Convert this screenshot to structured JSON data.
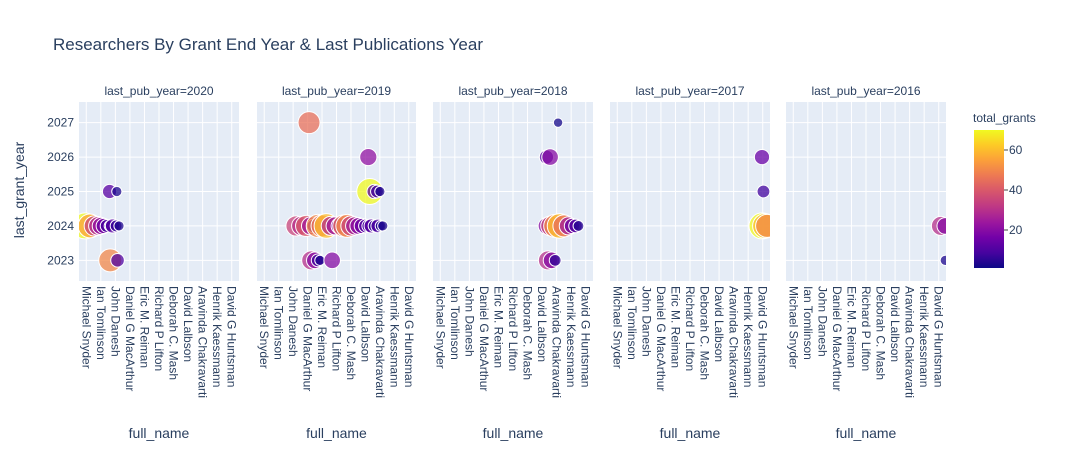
{
  "chart_data": {
    "type": "scatter",
    "title": "Researchers By Grant End Year & Last Publications Year",
    "xlabel": "full_name",
    "ylabel": "last_grant_year",
    "categories": [
      "Michael Snyder",
      "Ian Tomlinson",
      "John Danesh",
      "Daniel G MacArthur",
      "Eric M. Reiman",
      "Richard P Lifton",
      "Deborah C. Mash",
      "David Lalbson",
      "Aravinda Chakravarti",
      "Henrik Kaessmann",
      "David G Huntsman"
    ],
    "y_ticks": [
      2023,
      2024,
      2025,
      2026,
      2027
    ],
    "ylim": [
      2022.4,
      2027.6
    ],
    "color_scale": {
      "title": "total_grants",
      "ticks": [
        20,
        40,
        60
      ],
      "range": [
        1,
        70
      ],
      "stops": [
        "#0d0887",
        "#46039f",
        "#7201a8",
        "#9c179e",
        "#bd3786",
        "#d8576b",
        "#ed7953",
        "#fb9f3a",
        "#fdca26",
        "#f0f921"
      ]
    },
    "facets": [
      {
        "label": "last_pub_year=2020",
        "points": [
          {
            "x": -0.1,
            "y": 2024,
            "value": 70
          },
          {
            "x": 0.25,
            "y": 2024,
            "value": 55
          },
          {
            "x": 0.55,
            "y": 2024,
            "value": 35
          },
          {
            "x": 0.8,
            "y": 2024,
            "value": 28
          },
          {
            "x": 1.0,
            "y": 2024,
            "value": 22
          },
          {
            "x": 1.2,
            "y": 2024,
            "value": 15
          },
          {
            "x": 1.4,
            "y": 2024,
            "value": 8
          },
          {
            "x": 1.6,
            "y": 2024,
            "value": 4
          },
          {
            "x": 1.8,
            "y": 2024,
            "value": 12
          },
          {
            "x": 2.05,
            "y": 2024,
            "value": 6
          },
          {
            "x": 2.25,
            "y": 2024,
            "value": 3
          },
          {
            "x": 1.6,
            "y": 2025,
            "value": 12
          },
          {
            "x": 2.1,
            "y": 2025,
            "value": 3
          },
          {
            "x": 1.65,
            "y": 2023,
            "value": 50
          },
          {
            "x": 2.15,
            "y": 2023,
            "value": 10
          }
        ]
      },
      {
        "label": "last_pub_year=2019",
        "points": [
          {
            "x": 3.1,
            "y": 2027,
            "value": 45
          },
          {
            "x": 2.2,
            "y": 2024,
            "value": 35
          },
          {
            "x": 2.55,
            "y": 2024,
            "value": 30
          },
          {
            "x": 2.9,
            "y": 2024,
            "value": 40
          },
          {
            "x": 3.2,
            "y": 2024,
            "value": 25
          },
          {
            "x": 3.45,
            "y": 2024,
            "value": 12
          },
          {
            "x": 3.7,
            "y": 2024,
            "value": 50
          },
          {
            "x": 4.0,
            "y": 2024,
            "value": 45
          },
          {
            "x": 4.3,
            "y": 2024,
            "value": 60
          },
          {
            "x": 4.6,
            "y": 2024,
            "value": 30
          },
          {
            "x": 4.9,
            "y": 2024,
            "value": 25
          },
          {
            "x": 5.2,
            "y": 2024,
            "value": 20
          },
          {
            "x": 5.5,
            "y": 2024,
            "value": 45
          },
          {
            "x": 5.75,
            "y": 2024,
            "value": 50
          },
          {
            "x": 6.0,
            "y": 2024,
            "value": 35
          },
          {
            "x": 6.25,
            "y": 2024,
            "value": 25
          },
          {
            "x": 6.5,
            "y": 2024,
            "value": 20
          },
          {
            "x": 6.75,
            "y": 2024,
            "value": 15
          },
          {
            "x": 7.0,
            "y": 2024,
            "value": 10
          },
          {
            "x": 7.2,
            "y": 2024,
            "value": 8
          },
          {
            "x": 7.4,
            "y": 2024,
            "value": 12
          },
          {
            "x": 7.6,
            "y": 2024,
            "value": 6
          },
          {
            "x": 7.85,
            "y": 2024,
            "value": 10
          },
          {
            "x": 8.05,
            "y": 2024,
            "value": 4
          },
          {
            "x": 8.2,
            "y": 2024,
            "value": 3
          },
          {
            "x": 3.25,
            "y": 2023,
            "value": 30
          },
          {
            "x": 3.5,
            "y": 2023,
            "value": 20
          },
          {
            "x": 3.7,
            "y": 2023,
            "value": 8
          },
          {
            "x": 3.85,
            "y": 2023,
            "value": 3
          },
          {
            "x": 4.7,
            "y": 2023,
            "value": 20
          },
          {
            "x": 7.2,
            "y": 2026,
            "value": 22
          },
          {
            "x": 7.3,
            "y": 2025,
            "value": 70
          },
          {
            "x": 7.6,
            "y": 2025,
            "value": 12
          },
          {
            "x": 7.8,
            "y": 2025,
            "value": 8
          },
          {
            "x": 8.0,
            "y": 2025,
            "value": 3
          }
        ]
      },
      {
        "label": "last_pub_year=2018",
        "points": [
          {
            "x": 8.1,
            "y": 2027,
            "value": 2
          },
          {
            "x": 7.3,
            "y": 2026,
            "value": 12
          },
          {
            "x": 7.55,
            "y": 2026,
            "value": 20
          },
          {
            "x": 7.3,
            "y": 2024,
            "value": 20
          },
          {
            "x": 7.6,
            "y": 2024,
            "value": 35
          },
          {
            "x": 7.9,
            "y": 2024,
            "value": 50
          },
          {
            "x": 8.2,
            "y": 2024,
            "value": 60
          },
          {
            "x": 8.5,
            "y": 2024,
            "value": 45
          },
          {
            "x": 8.8,
            "y": 2024,
            "value": 25
          },
          {
            "x": 9.05,
            "y": 2024,
            "value": 15
          },
          {
            "x": 9.3,
            "y": 2024,
            "value": 10
          },
          {
            "x": 9.5,
            "y": 2024,
            "value": 4
          },
          {
            "x": 7.4,
            "y": 2023,
            "value": 30
          },
          {
            "x": 7.65,
            "y": 2023,
            "value": 20
          },
          {
            "x": 7.9,
            "y": 2023,
            "value": 6
          }
        ]
      },
      {
        "label": "last_pub_year=2017",
        "points": [
          {
            "x": 9.95,
            "y": 2026,
            "value": 15
          },
          {
            "x": 10.05,
            "y": 2025,
            "value": 8
          },
          {
            "x": 9.95,
            "y": 2024,
            "value": 70
          },
          {
            "x": 10.15,
            "y": 2024,
            "value": 60
          },
          {
            "x": 10.3,
            "y": 2024,
            "value": 50
          }
        ]
      },
      {
        "label": "last_pub_year=2016",
        "points": [
          {
            "x": 10.15,
            "y": 2024,
            "value": 30
          },
          {
            "x": 10.45,
            "y": 2024,
            "value": 20
          },
          {
            "x": 10.45,
            "y": 2023,
            "value": 3
          }
        ]
      }
    ]
  }
}
